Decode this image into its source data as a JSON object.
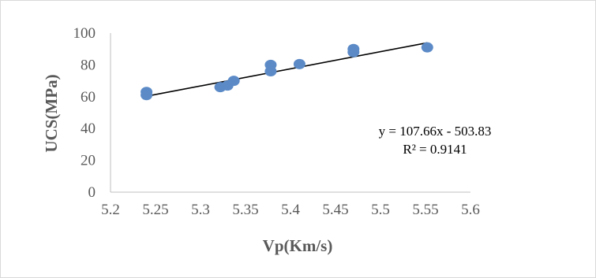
{
  "chart_data": {
    "type": "scatter",
    "xlabel": "Vp(Km/s)",
    "ylabel": "UCS(MPa)",
    "xlim": [
      5.2,
      5.6
    ],
    "ylim": [
      0,
      100
    ],
    "x_ticks": [
      "5.2",
      "5.25",
      "5.3",
      "5.35",
      "5.4",
      "5.45",
      "5.5",
      "5.55",
      "5.6"
    ],
    "y_ticks": [
      "0",
      "20",
      "40",
      "60",
      "80",
      "100"
    ],
    "grid": false,
    "series": [
      {
        "points": [
          {
            "x": 5.24,
            "y": 63
          },
          {
            "x": 5.24,
            "y": 61
          },
          {
            "x": 5.322,
            "y": 66
          },
          {
            "x": 5.33,
            "y": 67
          },
          {
            "x": 5.337,
            "y": 70
          },
          {
            "x": 5.378,
            "y": 80
          },
          {
            "x": 5.378,
            "y": 76
          },
          {
            "x": 5.41,
            "y": 80.5
          },
          {
            "x": 5.47,
            "y": 90
          },
          {
            "x": 5.47,
            "y": 88
          },
          {
            "x": 5.552,
            "y": 91
          }
        ],
        "color": "#5b8ac7"
      }
    ],
    "trendline": {
      "slope": 107.66,
      "intercept": -503.83,
      "x_range": [
        5.24,
        5.552
      ],
      "color": "#000000",
      "equation": "y = 107.66x - 503.83",
      "r_squared": "R² = 0.9141"
    }
  }
}
